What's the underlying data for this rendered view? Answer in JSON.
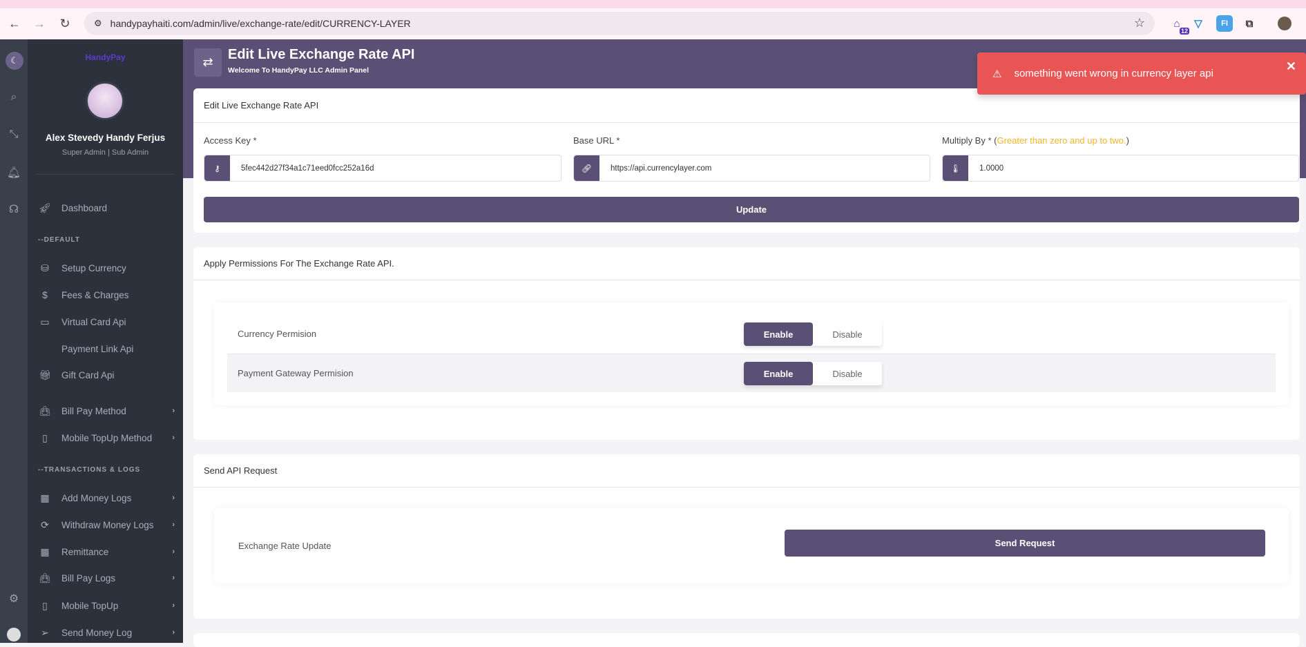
{
  "browser": {
    "url": "handypayhaiti.com/admin/live/exchange-rate/edit/CURRENCY-LAYER",
    "extension_badge": "12"
  },
  "sidebar": {
    "logo": "HandyPay",
    "user_name": "Alex Stevedy Handy Ferjus",
    "user_role": "Super Admin | Sub Admin",
    "items": [
      {
        "label": "Dashboard",
        "icon": "rocket-icon"
      },
      {
        "section": "--DEFAULT"
      },
      {
        "label": "Setup Currency",
        "icon": "coins-icon"
      },
      {
        "label": "Fees & Charges",
        "icon": "hand-dollar-icon"
      },
      {
        "label": "Virtual Card Api",
        "icon": "wallet-icon"
      },
      {
        "label": "Payment Link Api",
        "icon": "code-icon"
      },
      {
        "label": "Gift Card Api",
        "icon": "gift-icon"
      },
      {
        "label": "Bill Pay Method",
        "icon": "bag-icon",
        "submenu": true
      },
      {
        "label": "Mobile TopUp Method",
        "icon": "mobile-icon",
        "submenu": true
      },
      {
        "section": "--TRANSACTIONS & LOGS"
      },
      {
        "label": "Add Money Logs",
        "icon": "calculator-icon",
        "submenu": true
      },
      {
        "label": "Withdraw Money Logs",
        "icon": "withdraw-icon",
        "submenu": true
      },
      {
        "label": "Remittance",
        "icon": "calculator-icon",
        "submenu": true
      },
      {
        "label": "Bill Pay Logs",
        "icon": "bag-icon",
        "submenu": true
      },
      {
        "label": "Mobile TopUp",
        "icon": "mobile-icon",
        "submenu": true
      },
      {
        "label": "Send Money Log",
        "icon": "send-icon",
        "submenu": true
      }
    ]
  },
  "header": {
    "title": "Edit Live Exchange Rate API",
    "subtitle": "Welcome To HandyPay LLC Admin Panel"
  },
  "toast": {
    "message": "something went wrong in currency layer api",
    "color": "#e95455"
  },
  "edit_card": {
    "title": "Edit Live Exchange Rate API",
    "access_key": {
      "label": "Access Key *",
      "value": "5fec442d27f34a1c71eed0fcc252a16d"
    },
    "base_url": {
      "label": "Base URL *",
      "value": "https://api.currencylayer.com"
    },
    "multiply_by": {
      "label": "Multiply By * (",
      "hint": "Greater than zero and up to two.",
      "label_end": ")",
      "value": "1.0000"
    },
    "update_label": "Update"
  },
  "permissions_card": {
    "title": "Apply Permissions For The Exchange Rate API.",
    "rows": [
      {
        "label": "Currency Permision",
        "enable": "Enable",
        "disable": "Disable",
        "selected": "Enable"
      },
      {
        "label": "Payment Gateway Permision",
        "enable": "Enable",
        "disable": "Disable",
        "selected": "Enable"
      }
    ]
  },
  "request_card": {
    "title": "Send API Request",
    "row_label": "Exchange Rate Update",
    "button": "Send Request"
  },
  "colors": {
    "primary": "#5a5075",
    "sidebar": "#2c313c",
    "hint": "#f0b429"
  }
}
